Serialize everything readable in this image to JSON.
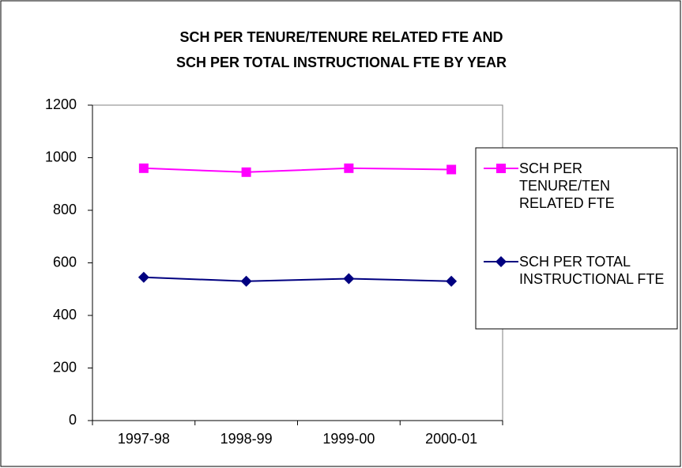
{
  "chart_data": {
    "type": "line",
    "title": [
      "SCH PER TENURE/TENURE RELATED FTE AND",
      "SCH PER TOTAL INSTRUCTIONAL FTE BY YEAR"
    ],
    "categories": [
      "1997-98",
      "1998-99",
      "1999-00",
      "2000-01"
    ],
    "series": [
      {
        "name": "SCH PER TENURE/TEN RELATED FTE",
        "color": "#ff00ff",
        "marker": "square",
        "values": [
          960,
          945,
          960,
          955
        ]
      },
      {
        "name": "SCH PER TOTAL INSTRUCTIONAL FTE",
        "color": "#000080",
        "marker": "diamond",
        "values": [
          545,
          530,
          540,
          530
        ]
      }
    ],
    "ylim": [
      0,
      1200
    ],
    "yticks": [
      0,
      200,
      400,
      600,
      800,
      1000,
      1200
    ],
    "legend": "right"
  }
}
